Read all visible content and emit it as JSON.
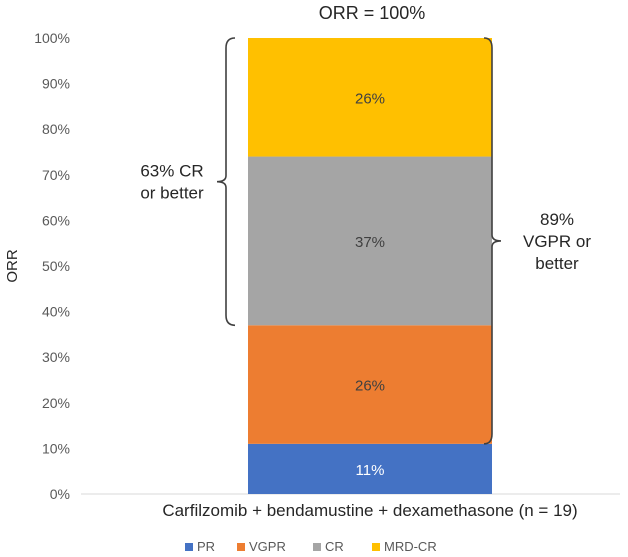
{
  "chart_data": {
    "type": "bar",
    "stacked": true,
    "title": "ORR = 100%",
    "ylabel": "ORR",
    "categories": [
      "Carfilzomib + bendamustine + dexamethasone (n = 19)"
    ],
    "ylim": [
      0,
      100
    ],
    "yticks": [
      "0%",
      "10%",
      "20%",
      "30%",
      "40%",
      "50%",
      "60%",
      "70%",
      "80%",
      "90%",
      "100%"
    ],
    "series": [
      {
        "name": "PR",
        "values": [
          11
        ],
        "label": "11%",
        "color": "#4472C4"
      },
      {
        "name": "VGPR",
        "values": [
          26
        ],
        "label": "26%",
        "color": "#ED7D31"
      },
      {
        "name": "CR",
        "values": [
          37
        ],
        "label": "37%",
        "color": "#A5A5A5"
      },
      {
        "name": "MRD-CR",
        "values": [
          26
        ],
        "label": "26%",
        "color": "#FFC000"
      }
    ],
    "annotations": [
      {
        "lines": [
          "63% CR",
          "or better"
        ],
        "from": 37,
        "to": 100,
        "side": "left"
      },
      {
        "lines": [
          "89%",
          "VGPR or",
          "better"
        ],
        "from": 11,
        "to": 100,
        "side": "right"
      }
    ],
    "legend_position": "bottom",
    "grid": false
  }
}
